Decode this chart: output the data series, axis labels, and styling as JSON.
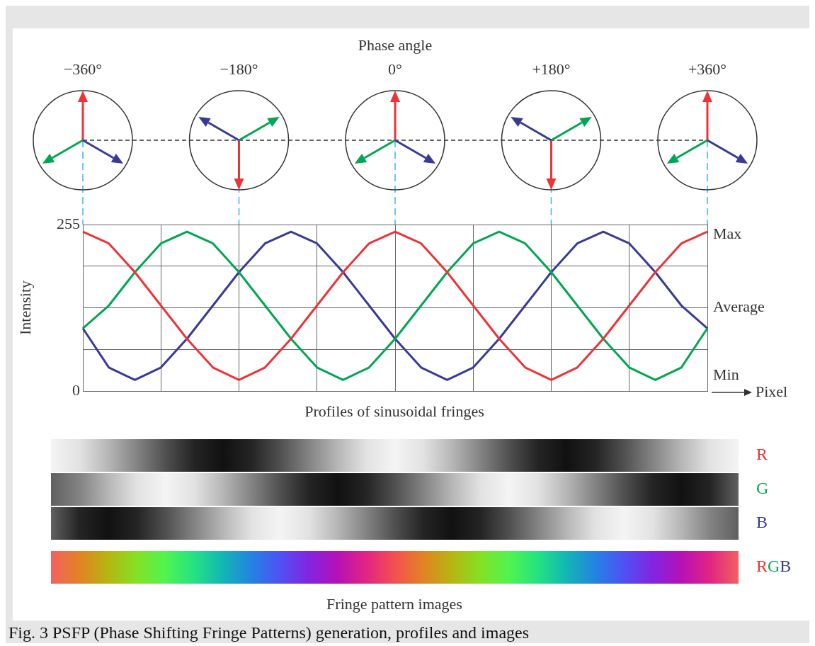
{
  "chart_data": {
    "type": "line",
    "xlabel": "Pixel",
    "ylabel": "Intensity",
    "categories": [
      null,
      null,
      null,
      null,
      null,
      null,
      null,
      null,
      null,
      null,
      null,
      null,
      null,
      null,
      null,
      null,
      null,
      null,
      null,
      null,
      null,
      null,
      null,
      null,
      null
    ],
    "series": [
      {
        "color": "#ee3338",
        "values": [
          244,
          226,
          182,
          131,
          80,
          36,
          17,
          36,
          80,
          131,
          182,
          226,
          244,
          226,
          182,
          131,
          80,
          36,
          17,
          36,
          80,
          131,
          182,
          226,
          244
        ]
      },
      {
        "color": "#00a651",
        "values": [
          96,
          131,
          182,
          226,
          244,
          226,
          182,
          131,
          80,
          36,
          17,
          36,
          80,
          131,
          182,
          226,
          244,
          226,
          182,
          131,
          80,
          36,
          17,
          36,
          96
        ]
      },
      {
        "color": "#3a3a96",
        "values": [
          96,
          36,
          17,
          36,
          80,
          131,
          182,
          226,
          244,
          226,
          182,
          131,
          80,
          36,
          17,
          36,
          80,
          131,
          182,
          226,
          244,
          226,
          182,
          131,
          96
        ]
      }
    ],
    "ylim": [
      0,
      255
    ],
    "yticks": [
      0,
      {
        "value": 63.75,
        "label": null
      },
      {
        "value": 127.5,
        "label": null
      },
      {
        "value": 191.25,
        "label": null
      },
      255
    ],
    "grid": true,
    "marker": "none",
    "annotations": [
      "Max",
      "Average",
      "Min",
      "Profiles of sinusoidal fringes",
      "R",
      "G",
      "B",
      "RGB",
      "Fringe pattern images",
      "Fig. 3 PSFP (Phase Shifting Fringe Patterns) generation, profiles and images",
      "Phase angle",
      "−360°",
      "−180°",
      "0°",
      "+180°",
      "+360°"
    ]
  }
}
